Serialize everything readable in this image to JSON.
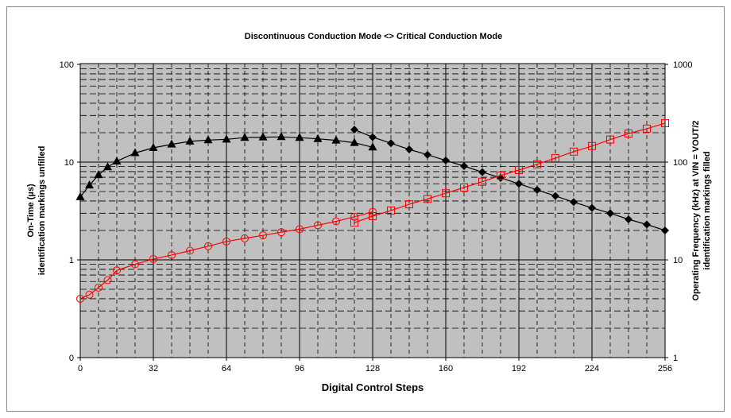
{
  "chart_data": {
    "type": "line",
    "title": "Discontinuous Conduction Mode <> Critical Conduction Mode",
    "xlabel": "Digital Control Steps",
    "ylabel_left_line1": "On-Time (µs)",
    "ylabel_left_line2": "identification markings unfilled",
    "ylabel_right_line1": "Operating Frequency (kHz) at VIN = VOUT/2",
    "ylabel_right_line2": "identification markings filled",
    "xlim": [
      0,
      256
    ],
    "x_ticks": [
      "0",
      "32",
      "64",
      "96",
      "128",
      "160",
      "192",
      "224",
      "256"
    ],
    "y_left_scale": "log",
    "y_left_ticks": [
      "0",
      "1",
      "10",
      "100"
    ],
    "y_right_scale": "log",
    "y_right_ticks": [
      "1",
      "10",
      "100",
      "1000"
    ],
    "grid": true,
    "colors": {
      "plot_bg": "#c0c0c0",
      "black_series": "#000000",
      "red_series": "#ff0000"
    },
    "series": [
      {
        "marker": "triangle-filled",
        "color": "#000000",
        "axis": "right",
        "x": [
          0,
          4,
          8,
          12,
          16,
          24,
          32,
          40,
          48,
          56,
          64,
          72,
          80,
          88,
          96,
          104,
          112,
          120,
          128
        ],
        "y": [
          44,
          58,
          74,
          89,
          102,
          124,
          140,
          152,
          163,
          168,
          171,
          178,
          180,
          181,
          178,
          173,
          167,
          158,
          142
        ]
      },
      {
        "marker": "diamond-filled",
        "color": "#000000",
        "axis": "right",
        "x": [
          120,
          128,
          136,
          144,
          152,
          160,
          168,
          176,
          184,
          192,
          200,
          208,
          216,
          224,
          232,
          240,
          248,
          256
        ],
        "y": [
          215,
          180,
          156,
          135,
          119,
          104,
          91,
          79,
          69,
          60,
          52,
          45,
          39,
          34,
          30,
          26,
          23,
          20
        ]
      },
      {
        "marker": "circle-open",
        "color": "#ff0000",
        "axis": "left",
        "x": [
          0,
          4,
          8,
          12,
          16,
          24,
          32,
          40,
          48,
          56,
          64,
          72,
          80,
          88,
          96,
          104,
          112,
          120,
          128
        ],
        "y": [
          0.4,
          0.44,
          0.52,
          0.62,
          0.78,
          0.9,
          1.02,
          1.12,
          1.24,
          1.38,
          1.54,
          1.66,
          1.78,
          1.92,
          2.06,
          2.26,
          2.48,
          2.76,
          3.1
        ]
      },
      {
        "marker": "square-open",
        "color": "#ff0000",
        "axis": "left",
        "x": [
          120,
          128,
          136,
          144,
          152,
          160,
          168,
          176,
          184,
          192,
          200,
          208,
          216,
          224,
          232,
          240,
          248,
          256
        ],
        "y": [
          2.4,
          2.8,
          3.2,
          3.7,
          4.2,
          4.8,
          5.5,
          6.3,
          7.3,
          8.3,
          9.5,
          11.0,
          12.8,
          14.6,
          17.0,
          19.6,
          22.0,
          25.0
        ]
      }
    ]
  }
}
